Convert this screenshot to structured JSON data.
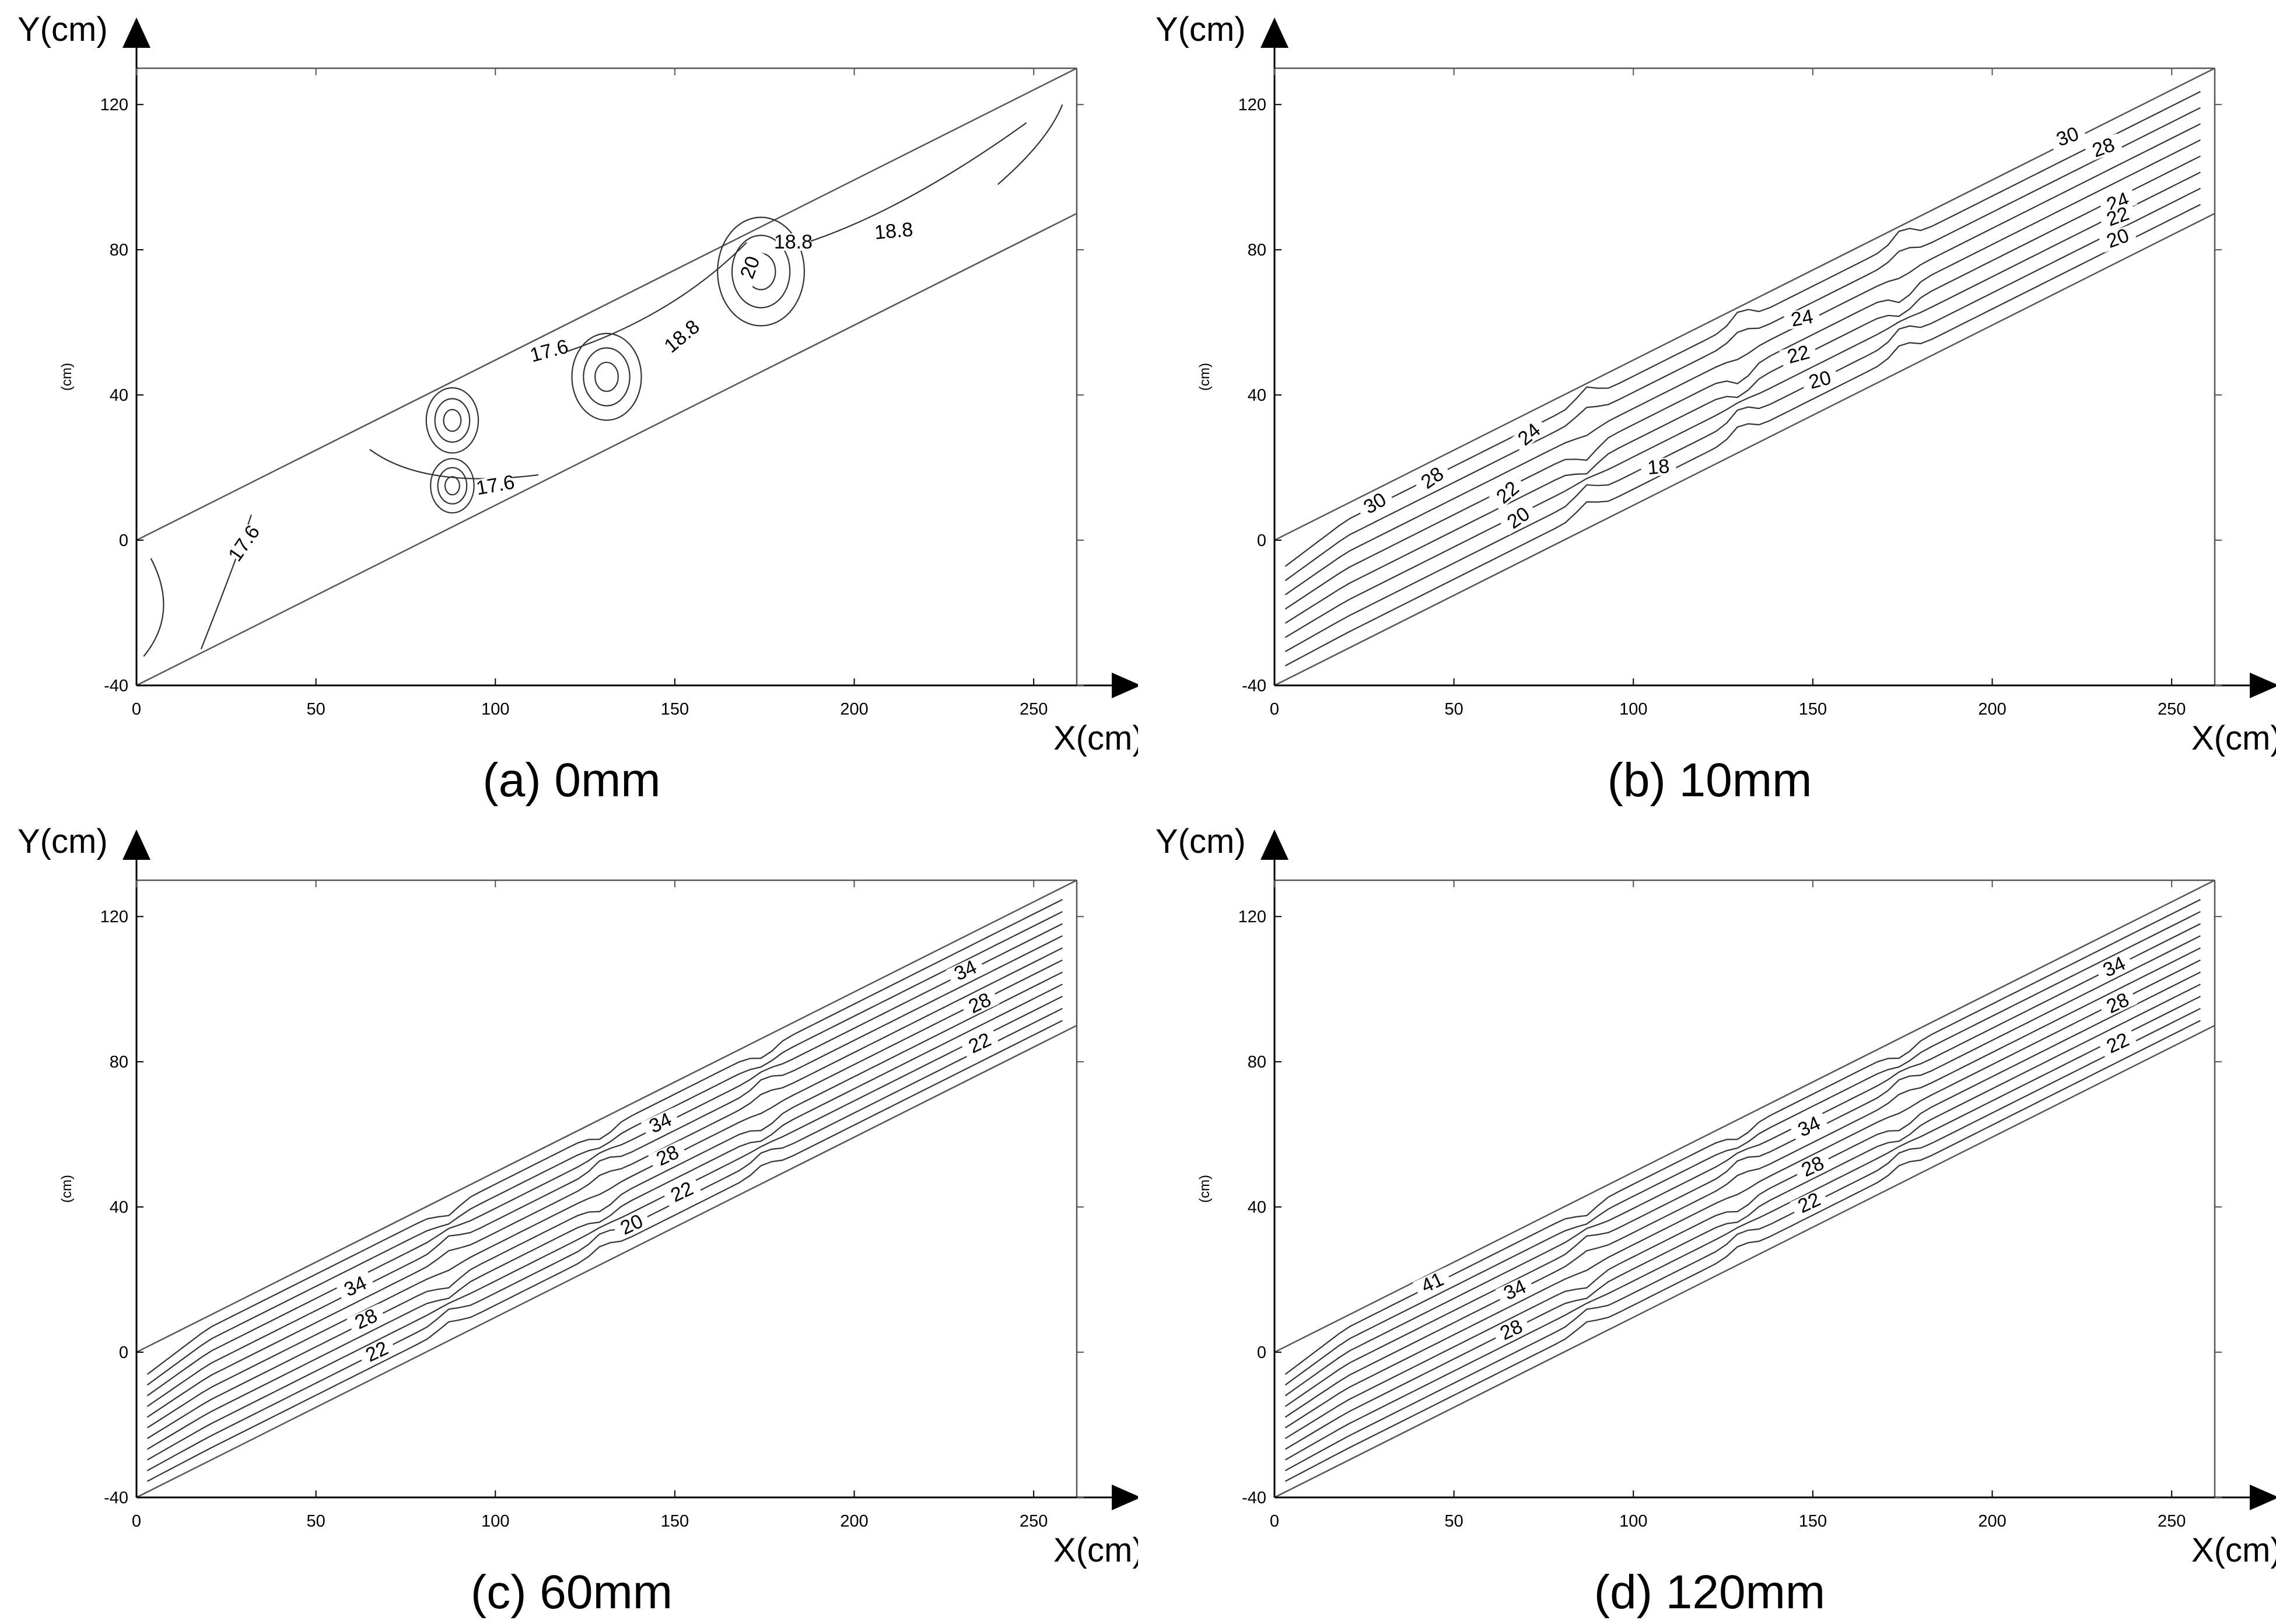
{
  "chart_data": [
    {
      "id": "a",
      "type": "contour",
      "caption": "(a) 0mm",
      "xlabel": "X(cm)",
      "ylabel": "Y(cm)",
      "inner_ylabel": "(cm)",
      "xlim": [
        0,
        262
      ],
      "ylim": [
        -40,
        130
      ],
      "xticks": [
        0,
        50,
        100,
        150,
        200,
        250
      ],
      "yticks": [
        -40,
        0,
        40,
        80,
        120
      ],
      "contour_labels": [
        {
          "text": "17.6",
          "x": 30,
          "y": -2,
          "rot": -55
        },
        {
          "text": "17.6",
          "x": 100,
          "y": 14,
          "rot": -10
        },
        {
          "text": "17.6",
          "x": 115,
          "y": 51,
          "rot": -15
        },
        {
          "text": "18.8",
          "x": 152,
          "y": 55,
          "rot": -40
        },
        {
          "text": "18.8",
          "x": 183,
          "y": 81,
          "rot": 0
        },
        {
          "text": "18.8",
          "x": 211,
          "y": 84,
          "rot": -5
        },
        {
          "text": "20",
          "x": 171,
          "y": 74,
          "rot": -70
        }
      ]
    },
    {
      "id": "b",
      "type": "contour",
      "caption": "(b) 10mm",
      "xlabel": "X(cm)",
      "ylabel": "Y(cm)",
      "inner_ylabel": "(cm)",
      "xlim": [
        0,
        262
      ],
      "ylim": [
        -40,
        130
      ],
      "xticks": [
        0,
        50,
        100,
        150,
        200,
        250
      ],
      "yticks": [
        -40,
        0,
        40,
        80,
        120
      ],
      "contour_labels": [
        {
          "text": "30",
          "x": 28,
          "y": 9,
          "rot": -30
        },
        {
          "text": "28",
          "x": 44,
          "y": 16,
          "rot": -35
        },
        {
          "text": "24",
          "x": 71,
          "y": 28,
          "rot": -40
        },
        {
          "text": "22",
          "x": 65,
          "y": 12,
          "rot": -40
        },
        {
          "text": "20",
          "x": 68,
          "y": 5,
          "rot": -35
        },
        {
          "text": "18",
          "x": 107,
          "y": 19,
          "rot": -5
        },
        {
          "text": "24",
          "x": 147,
          "y": 60,
          "rot": -10
        },
        {
          "text": "22",
          "x": 146,
          "y": 50,
          "rot": -15
        },
        {
          "text": "20",
          "x": 152,
          "y": 43,
          "rot": -15
        },
        {
          "text": "30",
          "x": 221,
          "y": 110,
          "rot": -20
        },
        {
          "text": "28",
          "x": 231,
          "y": 107,
          "rot": -20
        },
        {
          "text": "24",
          "x": 235,
          "y": 92,
          "rot": -20
        },
        {
          "text": "22",
          "x": 235,
          "y": 88,
          "rot": -20
        },
        {
          "text": "20",
          "x": 235,
          "y": 82,
          "rot": -20
        }
      ]
    },
    {
      "id": "c",
      "type": "contour",
      "caption": "(c) 60mm",
      "xlabel": "X(cm)",
      "ylabel": "Y(cm)",
      "inner_ylabel": "(cm)",
      "xlim": [
        0,
        262
      ],
      "ylim": [
        -40,
        130
      ],
      "xticks": [
        0,
        50,
        100,
        150,
        200,
        250
      ],
      "yticks": [
        -40,
        0,
        40,
        80,
        120
      ],
      "contour_labels": [
        {
          "text": "34",
          "x": 61,
          "y": 17,
          "rot": -25
        },
        {
          "text": "28",
          "x": 64,
          "y": 8,
          "rot": -25
        },
        {
          "text": "22",
          "x": 67,
          "y": -1,
          "rot": -25
        },
        {
          "text": "34",
          "x": 146,
          "y": 62,
          "rot": -25
        },
        {
          "text": "28",
          "x": 148,
          "y": 53,
          "rot": -25
        },
        {
          "text": "22",
          "x": 152,
          "y": 43,
          "rot": -25
        },
        {
          "text": "20",
          "x": 138,
          "y": 34,
          "rot": -25
        },
        {
          "text": "34",
          "x": 231,
          "y": 104,
          "rot": -25
        },
        {
          "text": "28",
          "x": 235,
          "y": 95,
          "rot": -25
        },
        {
          "text": "22",
          "x": 235,
          "y": 84,
          "rot": -25
        }
      ]
    },
    {
      "id": "d",
      "type": "contour",
      "caption": "(d) 120mm",
      "xlabel": "X(cm)",
      "ylabel": "Y(cm)",
      "inner_ylabel": "(cm)",
      "xlim": [
        0,
        262
      ],
      "ylim": [
        -40,
        130
      ],
      "xticks": [
        0,
        50,
        100,
        150,
        200,
        250
      ],
      "yticks": [
        -40,
        0,
        40,
        80,
        120
      ],
      "contour_labels": [
        {
          "text": "41",
          "x": 44,
          "y": 18,
          "rot": -25
        },
        {
          "text": "34",
          "x": 67,
          "y": 16,
          "rot": -25
        },
        {
          "text": "28",
          "x": 66,
          "y": 5,
          "rot": -25
        },
        {
          "text": "34",
          "x": 149,
          "y": 61,
          "rot": -25
        },
        {
          "text": "28",
          "x": 150,
          "y": 50,
          "rot": -25
        },
        {
          "text": "22",
          "x": 149,
          "y": 40,
          "rot": -25
        },
        {
          "text": "34",
          "x": 234,
          "y": 105,
          "rot": -25
        },
        {
          "text": "28",
          "x": 235,
          "y": 95,
          "rot": -25
        },
        {
          "text": "22",
          "x": 235,
          "y": 84,
          "rot": -25
        }
      ]
    }
  ]
}
